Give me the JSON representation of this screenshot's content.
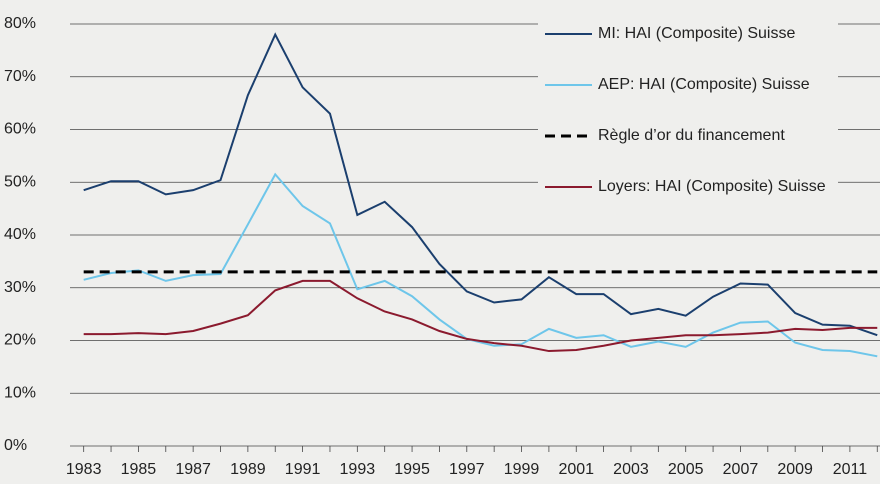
{
  "chart_data": {
    "type": "line",
    "x": [
      1983,
      1984,
      1985,
      1986,
      1987,
      1988,
      1989,
      1990,
      1991,
      1992,
      1993,
      1994,
      1995,
      1996,
      1997,
      1998,
      1999,
      2000,
      2001,
      2002,
      2003,
      2004,
      2005,
      2006,
      2007,
      2008,
      2009,
      2010,
      2011,
      2012
    ],
    "xlim": [
      1982.5,
      2012.1
    ],
    "xticks": [
      1983,
      1985,
      1987,
      1989,
      1991,
      1993,
      1995,
      1997,
      1999,
      2001,
      2003,
      2005,
      2007,
      2009,
      2011
    ],
    "ylim": [
      0,
      80
    ],
    "yticks": [
      {
        "value": 0,
        "label": "0%"
      },
      {
        "value": 10,
        "label": "10%"
      },
      {
        "value": 20,
        "label": "20%"
      },
      {
        "value": 30,
        "label": "30%"
      },
      {
        "value": 40,
        "label": "40%"
      },
      {
        "value": 50,
        "label": "50%"
      },
      {
        "value": 60,
        "label": "60%"
      },
      {
        "value": 70,
        "label": "70%"
      },
      {
        "value": 80,
        "label": "80%"
      }
    ],
    "grid": true,
    "legend": "top-right",
    "series": [
      {
        "name": "MI: HAI (Composite) Suisse",
        "color": "#1b3f6e",
        "values": [
          48.5,
          50.2,
          50.2,
          47.7,
          48.5,
          50.4,
          66.5,
          78,
          68,
          63,
          43.8,
          46.3,
          41.5,
          34.5,
          29.3,
          27.2,
          27.8,
          32,
          28.8,
          28.8,
          25,
          26,
          24.7,
          28.3,
          30.8,
          30.6,
          25.2,
          23,
          22.8,
          21
        ]
      },
      {
        "name": "AEP: HAI (Composite) Suisse",
        "color": "#6ec6ea",
        "values": [
          31.5,
          32.8,
          33.3,
          31.3,
          32.4,
          32.6,
          42,
          51.5,
          45.5,
          42.2,
          29.7,
          31.3,
          28.4,
          24,
          20.3,
          19,
          19.3,
          22.2,
          20.5,
          21,
          18.8,
          19.8,
          18.8,
          21.5,
          23.4,
          23.6,
          19.6,
          18.2,
          18,
          17
        ]
      },
      {
        "name": "Règle d’or du financement",
        "color": "#000000",
        "dash": true,
        "values": [
          33,
          33,
          33,
          33,
          33,
          33,
          33,
          33,
          33,
          33,
          33,
          33,
          33,
          33,
          33,
          33,
          33,
          33,
          33,
          33,
          33,
          33,
          33,
          33,
          33,
          33,
          33,
          33,
          33,
          33
        ]
      },
      {
        "name": "Loyers: HAI (Composite) Suisse",
        "color": "#8b1a2e",
        "values": [
          21.2,
          21.2,
          21.4,
          21.2,
          21.8,
          23.2,
          24.8,
          29.5,
          31.3,
          31.3,
          28,
          25.5,
          24,
          21.8,
          20.3,
          19.5,
          19,
          18,
          18.2,
          19,
          20,
          20.5,
          21,
          21,
          21.2,
          21.5,
          22.2,
          22,
          22.4,
          22.4
        ]
      }
    ]
  }
}
